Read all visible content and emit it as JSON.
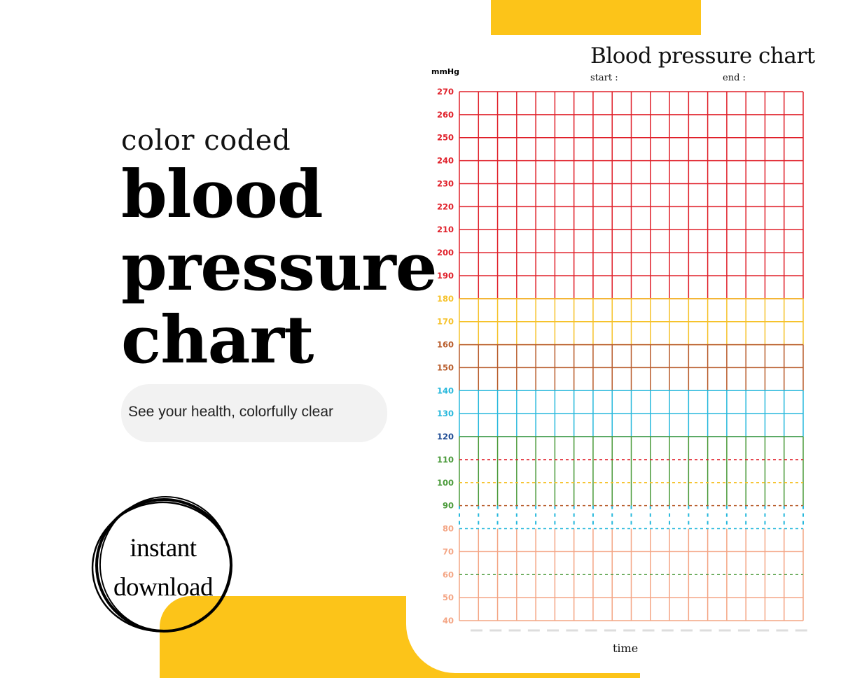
{
  "hero": {
    "kicker": "color coded",
    "line1": "blood",
    "line2": "pressure",
    "line3": "chart",
    "tagline": "See your health, colorfully clear"
  },
  "badge": {
    "line1": "instant",
    "line2": "download"
  },
  "colors": {
    "accent_yellow": "#fcc419",
    "red": "#e0202a",
    "yellow": "#f6c22a",
    "brown": "#b85c2b",
    "cyan": "#27b8dc",
    "navy": "#1d4a93",
    "green": "#4a9a3a",
    "salmon": "#f4a584"
  },
  "chart_data": {
    "type": "table",
    "title": "Blood pressure chart",
    "start_label": "start  :",
    "end_label": "end   :",
    "unit": "mmHg",
    "xlabel": "time",
    "ylim": [
      40,
      270
    ],
    "yticks": [
      270,
      260,
      250,
      240,
      230,
      220,
      210,
      200,
      190,
      180,
      170,
      160,
      150,
      140,
      130,
      120,
      110,
      100,
      90,
      80,
      70,
      60,
      50,
      40
    ],
    "columns": 18,
    "bands": [
      {
        "from": 180,
        "to": 270,
        "color": "red"
      },
      {
        "from": 160,
        "to": 180,
        "color": "yellow"
      },
      {
        "from": 140,
        "to": 160,
        "color": "brown"
      },
      {
        "from": 120,
        "to": 140,
        "color": "cyan"
      },
      {
        "from": 90,
        "to": 120,
        "color": "green"
      },
      {
        "from": 80,
        "to": 90,
        "color": "cyan"
      },
      {
        "from": 40,
        "to": 80,
        "color": "salmon"
      }
    ],
    "dashed_lines": [
      {
        "value": 110,
        "color": "red"
      },
      {
        "value": 100,
        "color": "yellow"
      },
      {
        "value": 90,
        "color": "brown"
      },
      {
        "value": 80,
        "color": "cyan"
      },
      {
        "value": 60,
        "color": "green"
      }
    ]
  }
}
